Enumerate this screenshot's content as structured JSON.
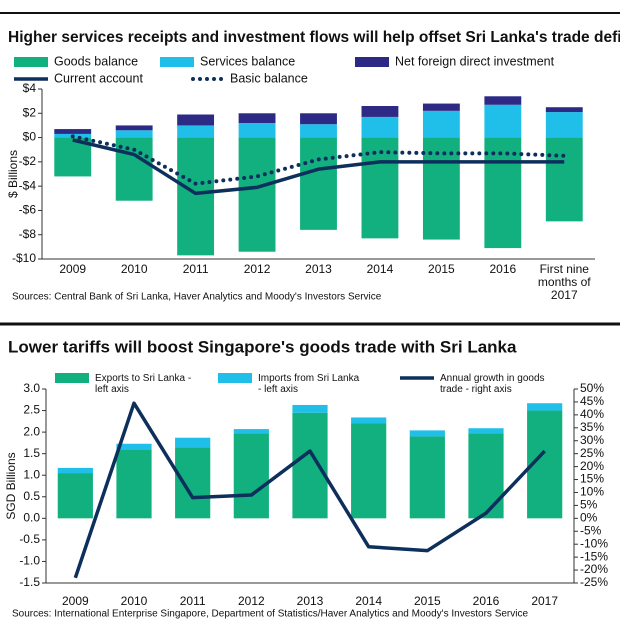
{
  "chart_data": [
    {
      "type": "bar",
      "title": "Higher services receipts and investment flows will help offset Sri Lanka's trade deficit",
      "y_label": "$ Billions",
      "sources": "Sources: Central Bank of Sri Lanka, Haver Analytics and Moody's Investors Service",
      "categories": [
        "2009",
        "2010",
        "2011",
        "2012",
        "2013",
        "2014",
        "2015",
        "2016",
        "First nine months of 2017"
      ],
      "ylim": [
        -10,
        4
      ],
      "yticks": [
        {
          "value": 4,
          "label": "$4"
        },
        {
          "value": 2,
          "label": "$2"
        },
        {
          "value": 0,
          "label": "$0"
        },
        {
          "value": -2,
          "label": "-$2"
        },
        {
          "value": -4,
          "label": "-$4"
        },
        {
          "value": -6,
          "label": "-$6"
        },
        {
          "value": -8,
          "label": "-$8"
        },
        {
          "value": -10,
          "label": "-$10"
        }
      ],
      "series": [
        {
          "name": "Goods balance",
          "kind": "bar",
          "color": "#13b07f",
          "values": [
            -3.2,
            -5.2,
            -9.7,
            -9.4,
            -7.6,
            -8.3,
            -8.4,
            -9.1,
            -6.9
          ]
        },
        {
          "name": "Services balance",
          "kind": "bar",
          "color": "#20bfe9",
          "values": [
            0.3,
            0.6,
            1.0,
            1.2,
            1.1,
            1.7,
            2.2,
            2.7,
            2.1
          ]
        },
        {
          "name": "Net foreign direct investment",
          "kind": "bar",
          "color": "#2d2a85",
          "values": [
            0.4,
            0.4,
            0.9,
            0.8,
            0.9,
            0.9,
            0.6,
            0.7,
            0.4
          ]
        },
        {
          "name": "Current account",
          "kind": "line",
          "color": "#0d2f5c",
          "values": [
            -0.2,
            -1.4,
            -4.6,
            -4.1,
            -2.6,
            -2.0,
            -2.0,
            -2.0,
            -2.0
          ]
        },
        {
          "name": "Basic balance",
          "kind": "line",
          "dash": "dotted",
          "color": "#0d2f5c",
          "values": [
            0.1,
            -1.0,
            -3.8,
            -3.2,
            -1.8,
            -1.2,
            -1.3,
            -1.3,
            -1.5
          ]
        }
      ]
    },
    {
      "type": "bar",
      "title": "Lower tariffs will boost Singapore's goods trade with Sri Lanka",
      "y_label": "SGD Billions",
      "sources": "Sources: International Enterprise Singapore, Department of Statistics/Haver Analytics and Moody's Investors Service",
      "categories": [
        "2009",
        "2010",
        "2011",
        "2012",
        "2013",
        "2014",
        "2015",
        "2016",
        "2017"
      ],
      "ylim": [
        -1.5,
        3
      ],
      "yticks": [
        {
          "value": 3,
          "label": "3.0"
        },
        2.5,
        {
          "value": 2,
          "label": "2.0"
        },
        1.5,
        {
          "value": 1,
          "label": "1.0"
        },
        0.5,
        {
          "value": 0,
          "label": "0.0"
        },
        -0.5,
        {
          "value": -1,
          "label": "-1.0"
        },
        -1.5
      ],
      "y2lim": [
        -25,
        50
      ],
      "y2ticks": [
        {
          "value": 50,
          "label": "50%"
        },
        {
          "value": 45,
          "label": "45%"
        },
        {
          "value": 40,
          "label": "40%"
        },
        {
          "value": 35,
          "label": "35%"
        },
        {
          "value": 30,
          "label": "30%"
        },
        {
          "value": 25,
          "label": "25%"
        },
        {
          "value": 20,
          "label": "20%"
        },
        {
          "value": 15,
          "label": "15%"
        },
        {
          "value": 10,
          "label": "10%"
        },
        {
          "value": 5,
          "label": "5%"
        },
        {
          "value": 0,
          "label": "0%"
        },
        {
          "value": -5,
          "label": "-5%"
        },
        {
          "value": -10,
          "label": "-10%"
        },
        {
          "value": -15,
          "label": "-15%"
        },
        {
          "value": -20,
          "label": "-20%"
        },
        {
          "value": -25,
          "label": "-25%"
        }
      ],
      "series": [
        {
          "name": "Exports to Sri Lanka - left axis",
          "kind": "bar",
          "color": "#13b07f",
          "values": [
            1.05,
            1.6,
            1.65,
            1.97,
            2.45,
            2.2,
            1.9,
            1.97,
            2.5
          ]
        },
        {
          "name": "Imports from Sri Lanka - left axis",
          "kind": "bar",
          "color": "#20bfe9",
          "values": [
            0.12,
            0.13,
            0.22,
            0.1,
            0.18,
            0.14,
            0.14,
            0.12,
            0.17
          ]
        },
        {
          "name": "Annual growth in goods trade - right axis",
          "kind": "line",
          "axis": "y2",
          "color": "#0d2f5c",
          "values": [
            -23,
            44.5,
            8,
            9,
            26,
            -11,
            -12.5,
            2,
            26
          ]
        }
      ]
    }
  ]
}
